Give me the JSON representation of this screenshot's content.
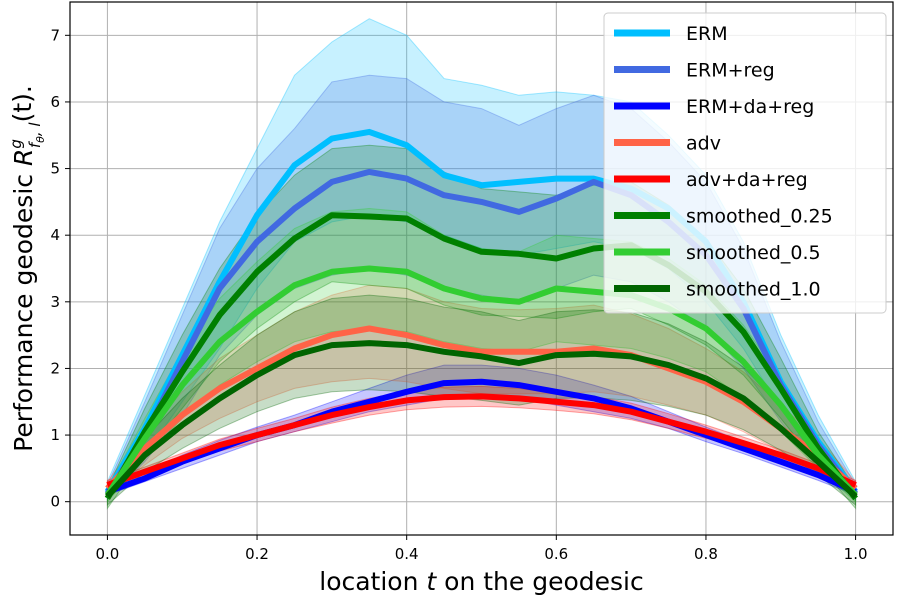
{
  "chart_data": {
    "type": "line",
    "xlabel": {
      "pre": "location ",
      "var": "t",
      "post": " on the geodesic"
    },
    "ylabel": {
      "pre": "Performance geodesic ",
      "sym": "R",
      "sup": "g",
      "sub": "f",
      "subsub": "θ",
      "subpost": ", l",
      "post": "(t)."
    },
    "xlim": [
      -0.05,
      1.05
    ],
    "ylim": [
      -0.5,
      7.5
    ],
    "grid": true,
    "legend_position": "top-right",
    "x_ticks": [
      0.0,
      0.2,
      0.4,
      0.6,
      0.8,
      1.0
    ],
    "x_tick_labels": [
      "0.0",
      "0.2",
      "0.4",
      "0.6",
      "0.8",
      "1.0"
    ],
    "y_ticks": [
      0,
      1,
      2,
      3,
      4,
      5,
      6,
      7
    ],
    "y_tick_labels": [
      "0",
      "1",
      "2",
      "3",
      "4",
      "5",
      "6",
      "7"
    ],
    "x": [
      0.0,
      0.05,
      0.1,
      0.15,
      0.2,
      0.25,
      0.3,
      0.35,
      0.4,
      0.45,
      0.5,
      0.55,
      0.6,
      0.65,
      0.7,
      0.75,
      0.8,
      0.85,
      0.9,
      0.95,
      1.0
    ],
    "series": [
      {
        "name": "ERM",
        "color": "#00bfff",
        "values": [
          0.15,
          1.1,
          2.2,
          3.3,
          4.3,
          5.05,
          5.45,
          5.55,
          5.35,
          4.9,
          4.75,
          4.8,
          4.85,
          4.85,
          4.7,
          4.4,
          3.9,
          3.0,
          1.8,
          0.9,
          0.15
        ],
        "lower": [
          0.05,
          0.7,
          1.5,
          2.3,
          3.2,
          3.9,
          4.2,
          4.3,
          4.2,
          4.0,
          3.8,
          3.7,
          3.8,
          3.9,
          3.8,
          3.5,
          3.0,
          2.3,
          1.4,
          0.6,
          0.05
        ],
        "upper": [
          0.3,
          1.6,
          2.9,
          4.2,
          5.3,
          6.4,
          6.9,
          7.25,
          7.0,
          6.35,
          6.25,
          6.1,
          6.15,
          6.1,
          6.0,
          5.5,
          4.9,
          3.9,
          2.5,
          1.3,
          0.3
        ]
      },
      {
        "name": "ERM+reg",
        "color": "#4169e1",
        "values": [
          0.12,
          1.0,
          2.1,
          3.2,
          3.9,
          4.4,
          4.8,
          4.95,
          4.85,
          4.6,
          4.5,
          4.35,
          4.55,
          4.8,
          4.6,
          4.2,
          3.7,
          2.9,
          1.75,
          0.85,
          0.12
        ],
        "lower": [
          0.03,
          0.6,
          1.3,
          2.2,
          2.8,
          3.2,
          3.4,
          3.5,
          3.4,
          3.2,
          3.1,
          3.0,
          3.2,
          3.4,
          3.3,
          3.0,
          2.6,
          2.0,
          1.2,
          0.5,
          0.03
        ],
        "upper": [
          0.25,
          1.5,
          2.8,
          4.1,
          5.0,
          5.6,
          6.3,
          6.4,
          6.35,
          6.0,
          5.9,
          5.65,
          5.9,
          6.1,
          5.9,
          5.4,
          4.8,
          3.8,
          2.4,
          1.2,
          0.25
        ]
      },
      {
        "name": "ERM+da+reg",
        "color": "#0000ff",
        "values": [
          0.15,
          0.35,
          0.6,
          0.8,
          1.0,
          1.15,
          1.35,
          1.5,
          1.65,
          1.78,
          1.8,
          1.75,
          1.65,
          1.55,
          1.4,
          1.2,
          1.0,
          0.8,
          0.6,
          0.4,
          0.15
        ],
        "lower": [
          0.1,
          0.3,
          0.5,
          0.7,
          0.9,
          1.05,
          1.2,
          1.35,
          1.45,
          1.55,
          1.6,
          1.55,
          1.45,
          1.35,
          1.25,
          1.1,
          0.9,
          0.72,
          0.52,
          0.32,
          0.1
        ],
        "upper": [
          0.2,
          0.42,
          0.7,
          0.92,
          1.12,
          1.3,
          1.5,
          1.7,
          1.9,
          2.05,
          2.05,
          2.0,
          1.9,
          1.75,
          1.58,
          1.35,
          1.12,
          0.9,
          0.68,
          0.48,
          0.2
        ]
      },
      {
        "name": "adv",
        "color": "#ff6347",
        "values": [
          0.2,
          0.8,
          1.3,
          1.7,
          2.0,
          2.3,
          2.5,
          2.6,
          2.5,
          2.35,
          2.25,
          2.25,
          2.25,
          2.3,
          2.2,
          2.0,
          1.8,
          1.5,
          1.1,
          0.7,
          0.2
        ],
        "lower": [
          0.1,
          0.55,
          0.95,
          1.25,
          1.5,
          1.7,
          1.8,
          1.85,
          1.8,
          1.7,
          1.62,
          1.62,
          1.62,
          1.65,
          1.58,
          1.45,
          1.3,
          1.05,
          0.75,
          0.45,
          0.1
        ],
        "upper": [
          0.3,
          1.05,
          1.65,
          2.15,
          2.5,
          2.85,
          3.1,
          3.25,
          3.2,
          3.0,
          2.9,
          2.88,
          2.9,
          2.95,
          2.82,
          2.6,
          2.3,
          1.95,
          1.45,
          0.95,
          0.3
        ]
      },
      {
        "name": "adv+da+reg",
        "color": "#ff0000",
        "values": [
          0.25,
          0.45,
          0.65,
          0.85,
          1.0,
          1.15,
          1.3,
          1.42,
          1.52,
          1.57,
          1.58,
          1.55,
          1.5,
          1.45,
          1.35,
          1.2,
          1.05,
          0.88,
          0.7,
          0.5,
          0.25
        ],
        "lower": [
          0.18,
          0.38,
          0.57,
          0.76,
          0.9,
          1.05,
          1.18,
          1.3,
          1.38,
          1.42,
          1.43,
          1.41,
          1.37,
          1.32,
          1.23,
          1.1,
          0.95,
          0.8,
          0.62,
          0.43,
          0.18
        ],
        "upper": [
          0.32,
          0.52,
          0.73,
          0.94,
          1.1,
          1.25,
          1.42,
          1.55,
          1.65,
          1.72,
          1.73,
          1.7,
          1.63,
          1.58,
          1.48,
          1.32,
          1.15,
          0.97,
          0.78,
          0.57,
          0.32
        ]
      },
      {
        "name": "smoothed_0.25",
        "color": "#008000",
        "values": [
          0.05,
          1.05,
          1.95,
          2.8,
          3.45,
          3.95,
          4.3,
          4.28,
          4.25,
          3.95,
          3.75,
          3.72,
          3.65,
          3.8,
          3.85,
          3.55,
          3.15,
          2.55,
          1.7,
          0.8,
          0.05
        ],
        "lower": [
          -0.1,
          0.7,
          1.4,
          2.1,
          2.6,
          3.0,
          3.3,
          3.25,
          3.2,
          2.95,
          2.8,
          2.78,
          2.75,
          2.85,
          2.9,
          2.65,
          2.35,
          1.9,
          1.25,
          0.55,
          -0.1
        ],
        "upper": [
          0.2,
          1.4,
          2.5,
          3.5,
          4.3,
          4.9,
          5.3,
          5.35,
          5.3,
          4.95,
          4.7,
          4.65,
          4.6,
          4.75,
          4.8,
          4.45,
          3.95,
          3.2,
          2.15,
          1.05,
          0.2
        ]
      },
      {
        "name": "smoothed_0.5",
        "color": "#32cd32",
        "values": [
          0.1,
          0.95,
          1.75,
          2.4,
          2.85,
          3.25,
          3.45,
          3.5,
          3.45,
          3.2,
          3.05,
          3.0,
          3.2,
          3.15,
          3.1,
          2.9,
          2.6,
          2.1,
          1.45,
          0.7,
          0.1
        ],
        "lower": [
          0.0,
          0.65,
          1.25,
          1.75,
          2.1,
          2.4,
          2.55,
          2.6,
          2.55,
          2.4,
          2.3,
          2.25,
          2.4,
          2.35,
          2.3,
          2.15,
          1.95,
          1.55,
          1.05,
          0.5,
          0.0
        ],
        "upper": [
          0.2,
          1.25,
          2.25,
          3.05,
          3.6,
          4.1,
          4.35,
          4.4,
          4.35,
          4.0,
          3.8,
          3.75,
          4.0,
          3.95,
          3.9,
          3.65,
          3.25,
          2.65,
          1.85,
          0.9,
          0.2
        ]
      },
      {
        "name": "smoothed_1.0",
        "color": "#006400",
        "values": [
          0.08,
          0.7,
          1.15,
          1.55,
          1.9,
          2.2,
          2.35,
          2.38,
          2.35,
          2.25,
          2.18,
          2.08,
          2.2,
          2.22,
          2.18,
          2.05,
          1.85,
          1.55,
          1.1,
          0.6,
          0.08
        ],
        "lower": [
          -0.05,
          0.45,
          0.8,
          1.1,
          1.35,
          1.55,
          1.65,
          1.68,
          1.65,
          1.58,
          1.52,
          1.45,
          1.55,
          1.56,
          1.52,
          1.43,
          1.3,
          1.08,
          0.77,
          0.4,
          -0.05
        ],
        "upper": [
          0.2,
          0.95,
          1.55,
          2.05,
          2.5,
          2.85,
          3.05,
          3.1,
          3.05,
          2.92,
          2.85,
          2.72,
          2.85,
          2.88,
          2.84,
          2.67,
          2.4,
          2.02,
          1.43,
          0.8,
          0.2
        ]
      }
    ]
  }
}
